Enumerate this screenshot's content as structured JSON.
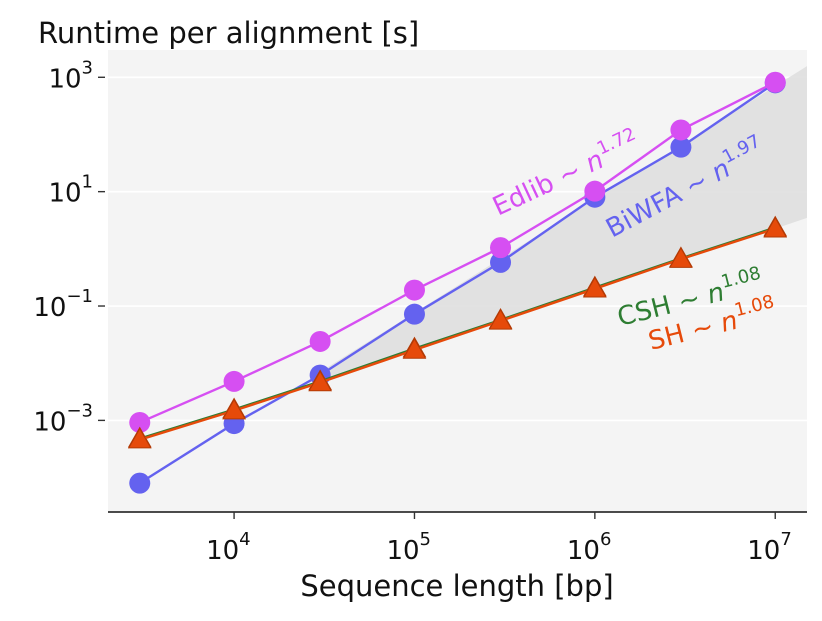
{
  "chart_data": {
    "type": "line",
    "title": "Runtime per alignment [s]",
    "xlabel": "Sequence length [bp]",
    "ylabel": "",
    "xscale": "log",
    "yscale": "log",
    "xlim": [
      2000,
      15000000
    ],
    "ylim": [
      2.5e-05,
      3000
    ],
    "grid": "horizontal",
    "legend": "none (inline series labels)",
    "x": [
      3000,
      10000,
      30000,
      100000,
      300000,
      1000000,
      3000000,
      10000000
    ],
    "x_ticks": [
      {
        "base": "10",
        "exp": "4",
        "value": 10000
      },
      {
        "base": "10",
        "exp": "5",
        "value": 100000
      },
      {
        "base": "10",
        "exp": "6",
        "value": 1000000
      },
      {
        "base": "10",
        "exp": "7",
        "value": 10000000
      }
    ],
    "y_ticks": [
      {
        "base": "10",
        "exp": "3",
        "value": 1000
      },
      {
        "base": "10",
        "exp": "1",
        "value": 10
      },
      {
        "base": "10",
        "exp": "−1",
        "value": 0.1
      },
      {
        "base": "10",
        "exp": "−3",
        "value": 0.001
      }
    ],
    "series": [
      {
        "name": "Edlib",
        "marker": "circle",
        "color": "#d64ff2",
        "exponent_label": "1.72",
        "values": [
          0.00092,
          0.0048,
          0.024,
          0.19,
          1.05,
          10.2,
          120,
          820
        ]
      },
      {
        "name": "BiWFA",
        "marker": "circle",
        "color": "#6462ef",
        "exponent_label": "1.97",
        "values": [
          8e-05,
          0.00088,
          0.0062,
          0.072,
          0.58,
          8.0,
          60,
          800
        ]
      },
      {
        "name": "CSH",
        "marker": "triangle",
        "color": "#2e7d32",
        "exponent_label": "1.08",
        "values": [
          0.00048,
          0.00155,
          0.0048,
          0.018,
          0.057,
          0.21,
          0.68,
          2.35
        ]
      },
      {
        "name": "SH",
        "marker": "triangle",
        "color": "#e64a0a",
        "exponent_label": "1.08",
        "values": [
          0.00046,
          0.00148,
          0.0046,
          0.017,
          0.055,
          0.2,
          0.66,
          2.25
        ]
      }
    ],
    "shaded_band": {
      "color": "#dddddd",
      "between": [
        "SH",
        "BiWFA"
      ],
      "x_from": 30000,
      "x_to": 15000000
    }
  }
}
